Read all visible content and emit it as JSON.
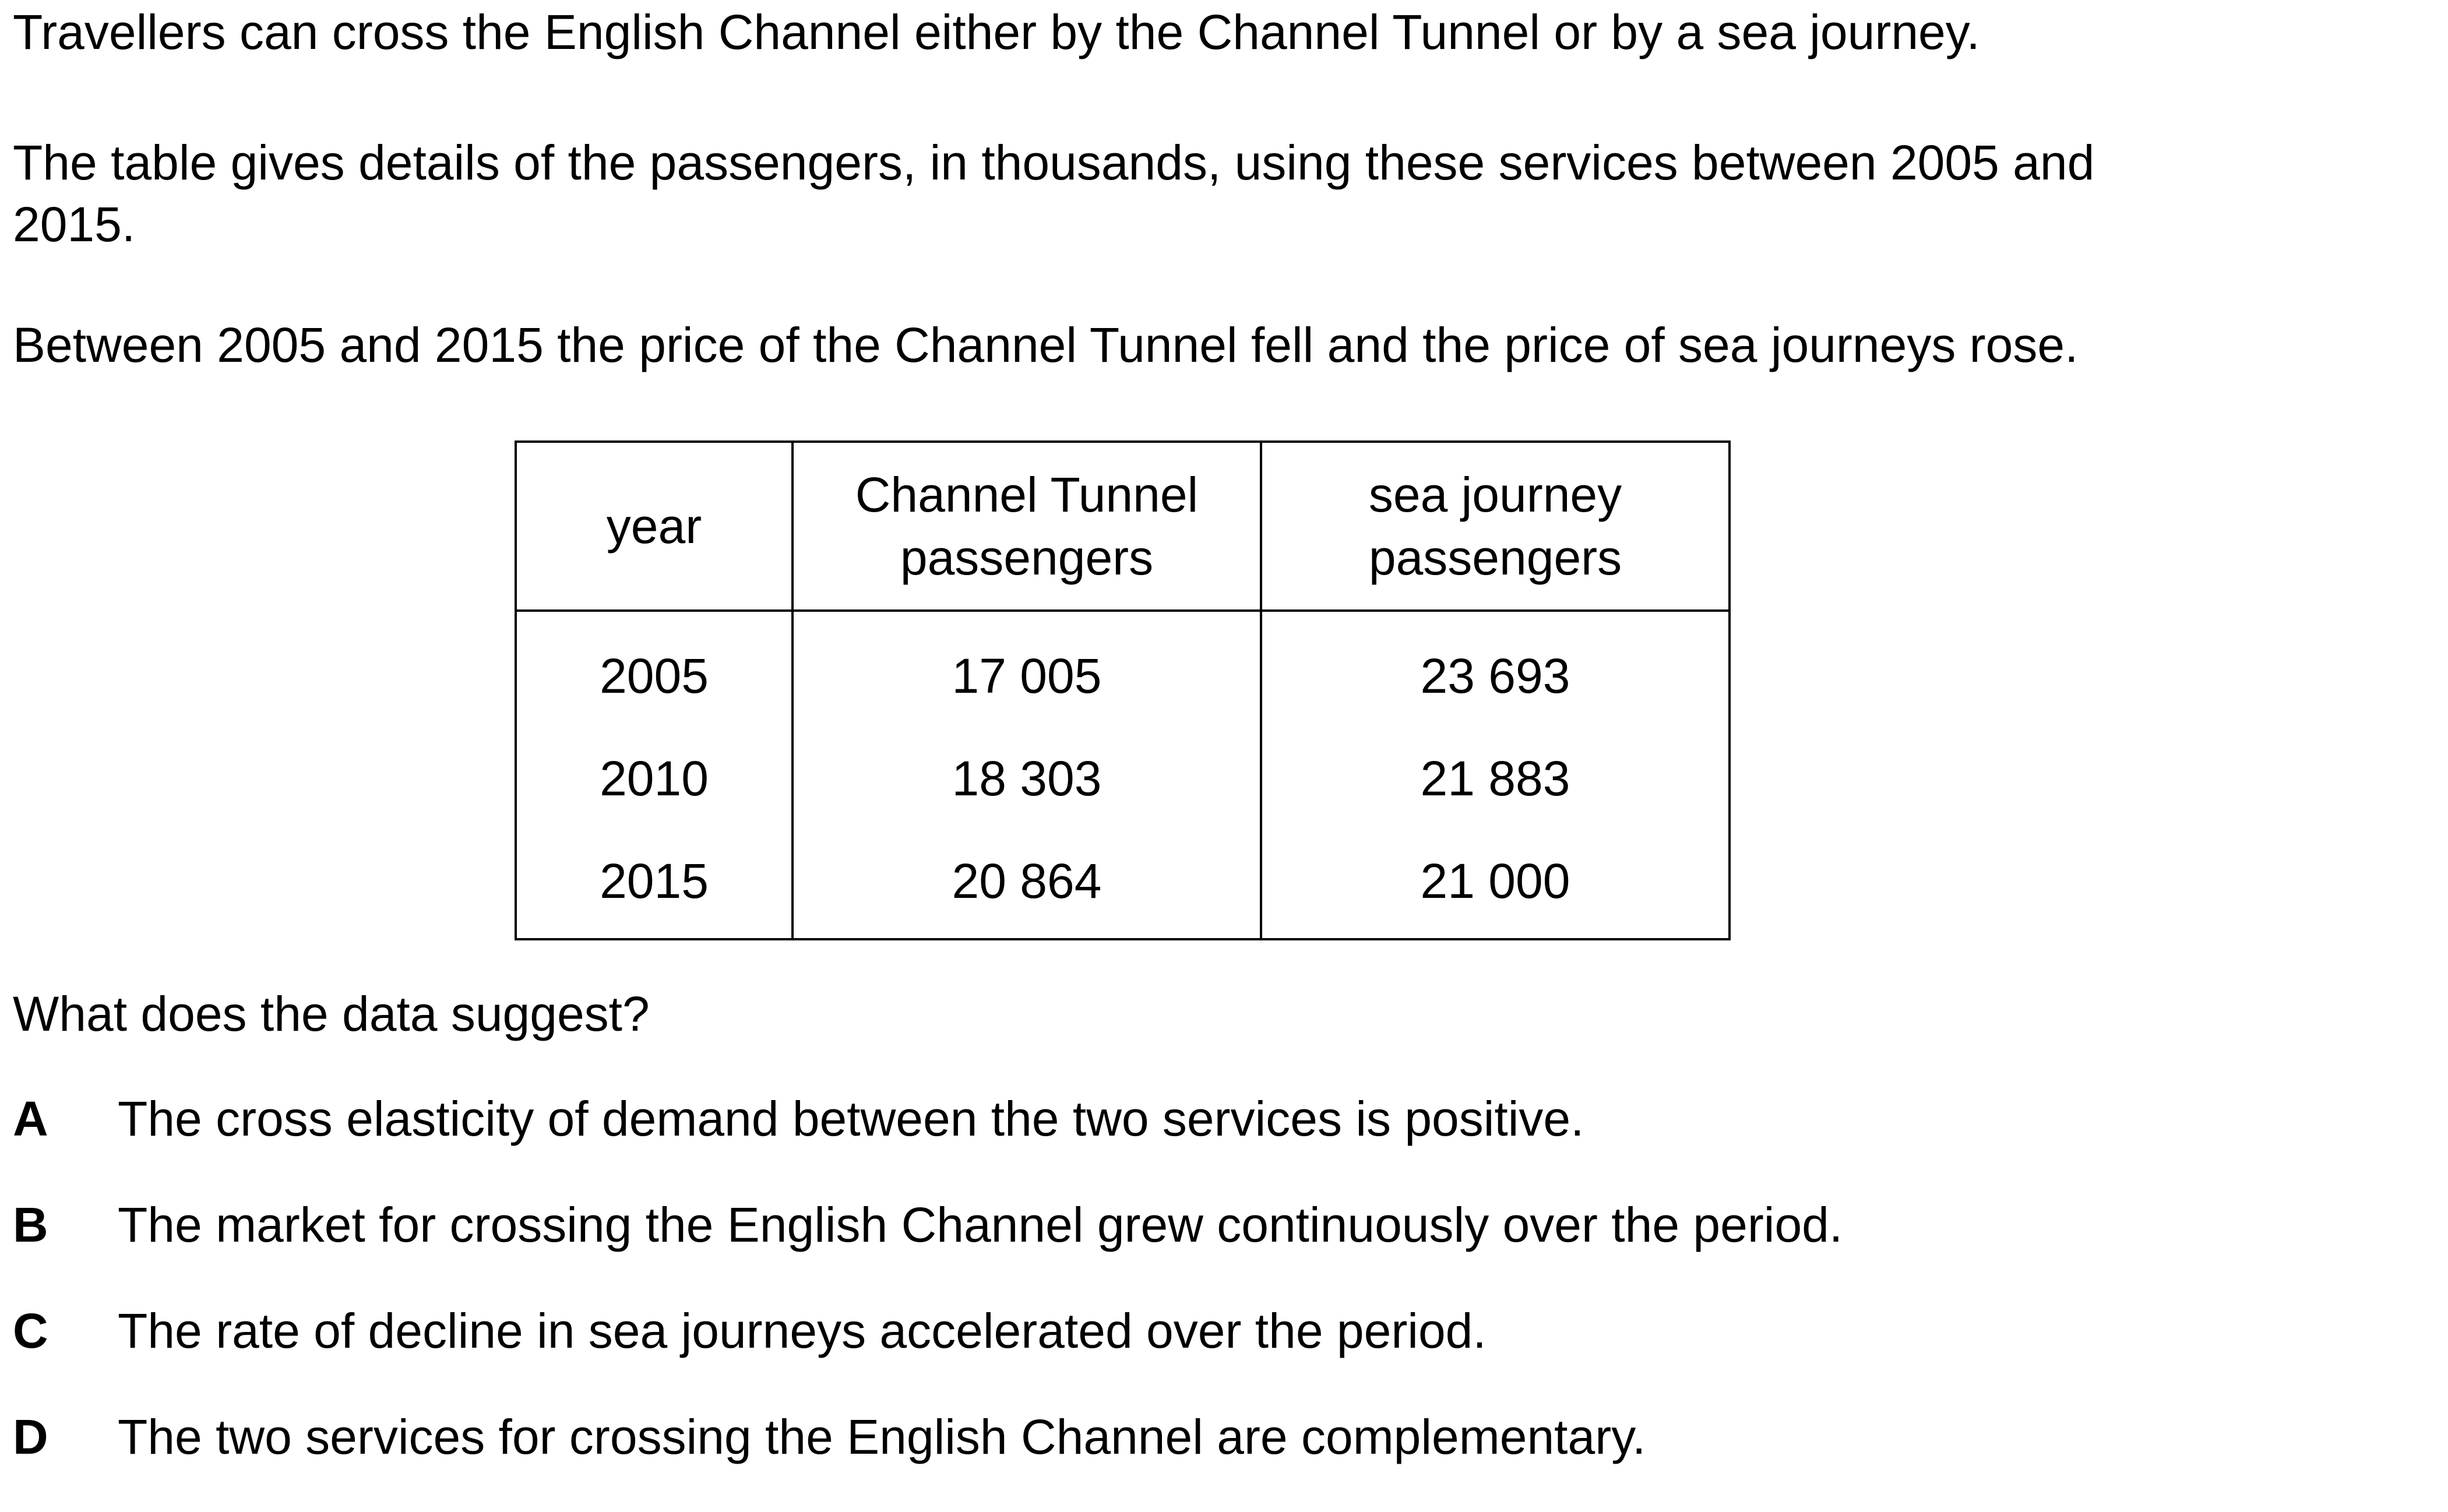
{
  "intro": {
    "sentence1": "Travellers can cross the English Channel either by the Channel Tunnel or by a sea journey.",
    "sentence2_line1": "The table gives details of the passengers, in thousands, using these services between 2005 and",
    "sentence2_line2": "2015.",
    "sentence3": "Between 2005 and 2015 the price of the Channel Tunnel fell and the price of sea journeys rose."
  },
  "table": {
    "headers": {
      "year": "year",
      "tunnel_line1": "Channel Tunnel",
      "tunnel_line2": "passengers",
      "sea_line1": "sea journey",
      "sea_line2": "passengers"
    },
    "rows": [
      {
        "year": "2005",
        "tunnel": "17 005",
        "sea": "23 693"
      },
      {
        "year": "2010",
        "tunnel": "18 303",
        "sea": "21 883"
      },
      {
        "year": "2015",
        "tunnel": "20 864",
        "sea": "21 000"
      }
    ]
  },
  "question": "What does the data suggest?",
  "options": [
    {
      "letter": "A",
      "text": "The cross elasticity of demand between the two services is positive."
    },
    {
      "letter": "B",
      "text": "The market for crossing the English Channel grew continuously over the period."
    },
    {
      "letter": "C",
      "text": "The rate of decline in sea journeys accelerated over the period."
    },
    {
      "letter": "D",
      "text": "The two services for crossing the English Channel are complementary."
    }
  ]
}
